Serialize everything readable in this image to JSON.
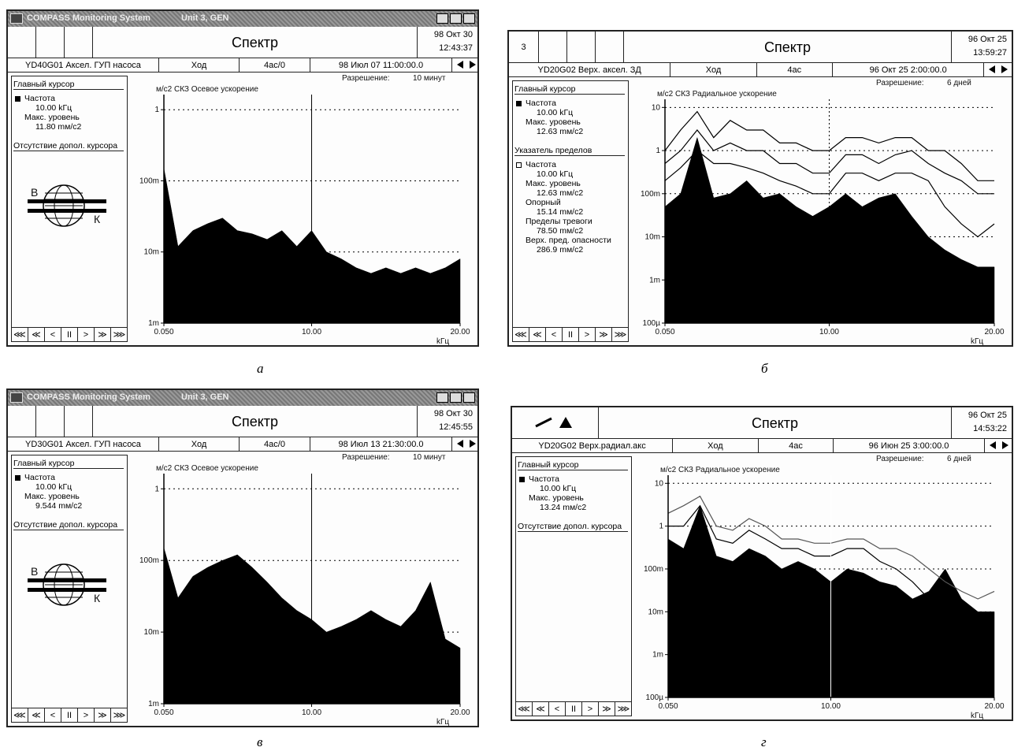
{
  "nav": [
    "⋘",
    "≪",
    "<",
    "II",
    ">",
    "≫",
    "⋙"
  ],
  "panels": [
    {
      "window_title": "COMPASS Monitoring System",
      "unit": "Unit 3, GEN",
      "header": {
        "title": "Спектр",
        "date": "98 Окт 30",
        "time": "12:43:37"
      },
      "info": [
        "YD40G01 Аксел. ГУП насоса",
        "Ход",
        "4ас/0",
        "98 Июл 07 11:00:00.0"
      ],
      "sidebar": [
        {
          "heading": "Главный курсор",
          "items": [
            "Частота",
            "10.00 kГц",
            "Макс. уровень",
            "11.80 mм/с2"
          ]
        },
        {
          "heading": "Отсутствие допол. курсора"
        }
      ],
      "logo": [
        "В",
        "К"
      ],
      "resolution_label": "Разрешение:",
      "resolution": "10 минут",
      "caption": "а"
    },
    {
      "header": {
        "left": "3",
        "title": "Спектр",
        "date": "96 Окт 25",
        "time": "13:59:27"
      },
      "info": [
        "YD20G02 Верх. аксел. ЗД",
        "Ход",
        "4ас",
        "96 Окт 25 2:00:00.0"
      ],
      "sidebar": [
        {
          "heading": "Главный курсор",
          "items": [
            "Частота",
            "10.00 kГц",
            "Макс. уровень",
            "12.63 mм/с2"
          ]
        },
        {
          "heading": "Указатель пределов",
          "items": [
            "Частота",
            "10.00 kГц",
            "Макс. уровень",
            "12.63 mм/с2",
            "Опорный",
            "15.14 mм/с2",
            "Пределы тревоги",
            "78.50 mм/с2",
            "Верх. пред. опасности",
            "286.9 mм/с2"
          ]
        }
      ],
      "resolution_label": "Разрешение:",
      "resolution": "6 дней",
      "caption": "б"
    },
    {
      "window_title": "COMPASS Monitoring System",
      "unit": "Unit 3, GEN",
      "header": {
        "title": "Спектр",
        "date": "98 Окт 30",
        "time": "12:45:55"
      },
      "info": [
        "YD30G01 Аксел. ГУП насоса",
        "Ход",
        "4ас/0",
        "98 Июл 13 21:30:00.0"
      ],
      "sidebar": [
        {
          "heading": "Главный курсор",
          "items": [
            "Частота",
            "10.00 kГц",
            "Макс. уровень",
            "9.544 mм/с2"
          ]
        },
        {
          "heading": "Отсутствие допол. курсора"
        }
      ],
      "logo": [
        "В",
        "К"
      ],
      "resolution_label": "Разрешение:",
      "resolution": "10 минут",
      "caption": "в"
    },
    {
      "header": {
        "title": "Спектр",
        "date": "96 Окт 25",
        "time": "14:53:22"
      },
      "info": [
        "YD20G02 Верх.радиал.акс",
        "Ход",
        "4ас",
        "96 Июн 25 3:00:00.0"
      ],
      "sidebar": [
        {
          "heading": "Главный курсор",
          "items": [
            "Частота",
            "10.00 kГц",
            "Макс. уровень",
            "13.24 mм/с2"
          ]
        },
        {
          "heading": "Отсутствие допол. курсора"
        }
      ],
      "resolution_label": "Разрешение:",
      "resolution": "6 дней",
      "caption": "г"
    }
  ],
  "chart_data": [
    {
      "type": "area",
      "y_label": "м/с2 СКЗ Осевое ускорение",
      "x_unit": "kГц",
      "log_y": true,
      "grid": true,
      "cursor_x": 10,
      "x": [
        0.05,
        1,
        2,
        3,
        4,
        5,
        6,
        7,
        8,
        9,
        10,
        11,
        12,
        13,
        14,
        15,
        16,
        17,
        18,
        19,
        20
      ],
      "series": [
        {
          "color": "#000",
          "fill": true,
          "values": [
            0.15,
            0.012,
            0.02,
            0.025,
            0.03,
            0.02,
            0.018,
            0.015,
            0.02,
            0.012,
            0.02,
            0.01,
            0.008,
            0.006,
            0.005,
            0.006,
            0.005,
            0.006,
            0.005,
            0.006,
            0.008
          ]
        }
      ],
      "xlim": [
        0.05,
        20
      ],
      "xticks": [
        {
          "value": 0.05,
          "label": "0.050"
        },
        {
          "value": 10,
          "label": "10.00"
        },
        {
          "value": 20,
          "label": "20.00"
        }
      ],
      "ylim": [
        0.001,
        1.4
      ],
      "yticks": [
        1,
        {
          "value": 0.1,
          "label": "100m"
        },
        {
          "value": 0.01,
          "label": "10m"
        },
        {
          "value": 0.001,
          "label": "1m"
        }
      ]
    },
    {
      "type": "area",
      "y_label": "м/с2 СКЗ Радиальное ускорение",
      "x_unit": "kГц",
      "log_y": true,
      "grid": true,
      "cursor_x": 10,
      "x": [
        0.05,
        1,
        2,
        3,
        4,
        5,
        6,
        7,
        8,
        9,
        10,
        11,
        12,
        13,
        14,
        15,
        16,
        17,
        18,
        19,
        20
      ],
      "series": [
        {
          "color": "#000",
          "fill": true,
          "values": [
            0.05,
            0.1,
            2,
            0.08,
            0.1,
            0.2,
            0.08,
            0.1,
            0.05,
            0.03,
            0.05,
            0.1,
            0.05,
            0.08,
            0.1,
            0.03,
            0.01,
            0.005,
            0.003,
            0.002,
            0.002
          ]
        },
        {
          "color": "#000",
          "fill": false,
          "values": [
            1,
            3,
            8,
            2,
            5,
            3,
            3,
            1.5,
            1.5,
            1,
            1,
            2,
            2,
            1.5,
            2,
            2,
            1,
            1,
            0.5,
            0.2,
            0.2
          ]
        },
        {
          "color": "#000",
          "fill": false,
          "values": [
            0.5,
            1,
            3,
            1,
            1.5,
            1,
            1,
            0.5,
            0.5,
            0.3,
            0.3,
            0.8,
            0.8,
            0.5,
            0.8,
            1,
            0.5,
            0.3,
            0.2,
            0.1,
            0.1
          ]
        },
        {
          "color": "#000",
          "fill": false,
          "values": [
            0.2,
            0.4,
            1,
            0.5,
            0.5,
            0.4,
            0.3,
            0.2,
            0.15,
            0.1,
            0.1,
            0.3,
            0.3,
            0.2,
            0.3,
            0.3,
            0.2,
            0.05,
            0.02,
            0.01,
            0.02
          ]
        }
      ],
      "xlim": [
        0.05,
        20
      ],
      "xticks": [
        {
          "value": 0.05,
          "label": "0.050"
        },
        {
          "value": 10,
          "label": "10.00"
        },
        {
          "value": 20,
          "label": "20.00"
        }
      ],
      "ylim": [
        0.0001,
        12
      ],
      "yticks": [
        10,
        1,
        {
          "value": 0.1,
          "label": "100m"
        },
        {
          "value": 0.01,
          "label": "10m"
        },
        {
          "value": 0.001,
          "label": "1m"
        },
        {
          "value": 0.0001,
          "label": "100µ"
        }
      ]
    },
    {
      "type": "area",
      "y_label": "м/с2 СКЗ Осевое ускорение",
      "x_unit": "kГц",
      "log_y": true,
      "grid": true,
      "cursor_x": 10,
      "x": [
        0.05,
        1,
        2,
        3,
        4,
        5,
        6,
        7,
        8,
        9,
        10,
        11,
        12,
        13,
        14,
        15,
        16,
        17,
        18,
        19,
        20
      ],
      "series": [
        {
          "color": "#000",
          "fill": true,
          "values": [
            0.15,
            0.03,
            0.06,
            0.08,
            0.1,
            0.12,
            0.08,
            0.05,
            0.03,
            0.02,
            0.015,
            0.01,
            0.012,
            0.015,
            0.02,
            0.015,
            0.012,
            0.02,
            0.05,
            0.008,
            0.006
          ]
        }
      ],
      "xlim": [
        0.05,
        20
      ],
      "xticks": [
        {
          "value": 0.05,
          "label": "0.050"
        },
        {
          "value": 10,
          "label": "10.00"
        },
        {
          "value": 20,
          "label": "20.00"
        }
      ],
      "ylim": [
        0.001,
        1.4
      ],
      "yticks": [
        1,
        {
          "value": 0.1,
          "label": "100m"
        },
        {
          "value": 0.01,
          "label": "10m"
        },
        {
          "value": 0.001,
          "label": "1m"
        }
      ]
    },
    {
      "type": "area",
      "y_label": "м/с2 СКЗ Радиальное ускорение",
      "x_unit": "kГц",
      "log_y": true,
      "grid": true,
      "cursor_x": 10,
      "x": [
        0.05,
        1,
        2,
        3,
        4,
        5,
        6,
        7,
        8,
        9,
        10,
        11,
        12,
        13,
        14,
        15,
        16,
        17,
        18,
        19,
        20
      ],
      "series": [
        {
          "color": "#000",
          "fill": true,
          "values": [
            0.5,
            0.3,
            3,
            0.2,
            0.15,
            0.3,
            0.2,
            0.1,
            0.15,
            0.1,
            0.05,
            0.1,
            0.08,
            0.05,
            0.04,
            0.02,
            0.03,
            0.1,
            0.02,
            0.01,
            0.01
          ]
        },
        {
          "color": "#555",
          "fill": false,
          "values": [
            2,
            3,
            5,
            1,
            0.8,
            1.5,
            1,
            0.5,
            0.5,
            0.4,
            0.4,
            0.5,
            0.5,
            0.3,
            0.3,
            0.2,
            0.1,
            0.05,
            0.03,
            0.02,
            0.03
          ]
        },
        {
          "color": "#000",
          "fill": false,
          "values": [
            1,
            1,
            3,
            0.5,
            0.4,
            0.8,
            0.5,
            0.3,
            0.3,
            0.2,
            0.2,
            0.3,
            0.3,
            0.15,
            0.1,
            0.05,
            0.02,
            0.01,
            0.005,
            0.003,
            0.003
          ]
        }
      ],
      "xlim": [
        0.05,
        20
      ],
      "xticks": [
        {
          "value": 0.05,
          "label": "0.050"
        },
        {
          "value": 10,
          "label": "10.00"
        },
        {
          "value": 20,
          "label": "20.00"
        }
      ],
      "ylim": [
        0.0001,
        12
      ],
      "yticks": [
        10,
        1,
        {
          "value": 0.1,
          "label": "100m"
        },
        {
          "value": 0.01,
          "label": "10m"
        },
        {
          "value": 0.001,
          "label": "1m"
        },
        {
          "value": 0.0001,
          "label": "100µ"
        }
      ]
    }
  ]
}
